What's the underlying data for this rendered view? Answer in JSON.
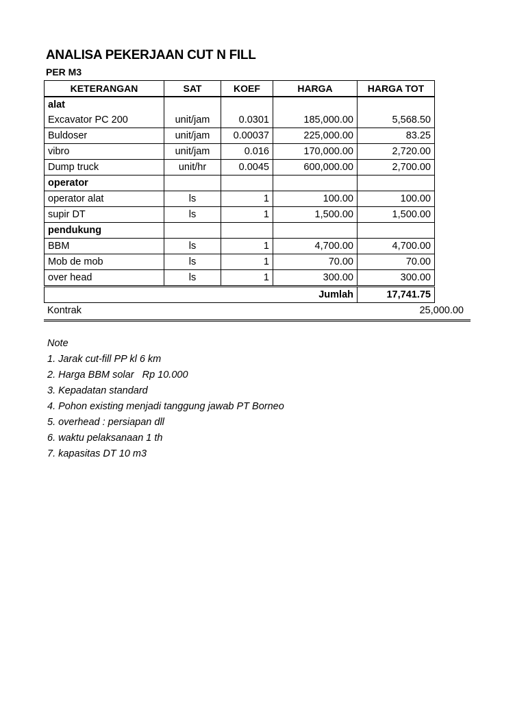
{
  "title": "ANALISA PEKERJAAN CUT N FILL",
  "subtitle": "PER M3",
  "table": {
    "headers": [
      "KETERANGAN",
      "SAT",
      "KOEF",
      "HARGA",
      "HARGA TOT"
    ],
    "groups": {
      "alat": "alat",
      "operator": "operator",
      "pendukung": "pendukung"
    },
    "rows": [
      {
        "ket": "Excavator PC 200",
        "sat": "unit/jam",
        "koef": "0.0301",
        "harga": "185,000.00",
        "tot": "5,568.50"
      },
      {
        "ket": "Buldoser",
        "sat": "unit/jam",
        "koef": "0.00037",
        "harga": "225,000.00",
        "tot": "83.25"
      },
      {
        "ket": "vibro",
        "sat": "unit/jam",
        "koef": "0.016",
        "harga": "170,000.00",
        "tot": "2,720.00"
      },
      {
        "ket": "Dump truck",
        "sat": "unit/hr",
        "koef": "0.0045",
        "harga": "600,000.00",
        "tot": "2,700.00"
      },
      {
        "ket": "operator alat",
        "sat": "ls",
        "koef": "1",
        "harga": "100.00",
        "tot": "100.00"
      },
      {
        "ket": "supir DT",
        "sat": "ls",
        "koef": "1",
        "harga": "1,500.00",
        "tot": "1,500.00"
      },
      {
        "ket": "BBM",
        "sat": "ls",
        "koef": "1",
        "harga": "4,700.00",
        "tot": "4,700.00"
      },
      {
        "ket": "Mob de mob",
        "sat": "ls",
        "koef": "1",
        "harga": "70.00",
        "tot": "70.00"
      },
      {
        "ket": "over head",
        "sat": "ls",
        "koef": "1",
        "harga": "300.00",
        "tot": "300.00"
      }
    ],
    "jumlah_label": "Jumlah",
    "jumlah_value": "17,741.75"
  },
  "kontrak": {
    "label": "Kontrak",
    "value": "25,000.00"
  },
  "notes": {
    "heading": "Note",
    "items": [
      "1. Jarak cut-fill PP kl 6 km",
      "2. Harga BBM solar   Rp 10.000",
      "3. Kepadatan standard",
      "4. Pohon existing menjadi tanggung jawab PT Borneo",
      "5. overhead : persiapan dll",
      "6. waktu pelaksanaan 1 th",
      "7. kapasitas DT 10 m3"
    ]
  }
}
